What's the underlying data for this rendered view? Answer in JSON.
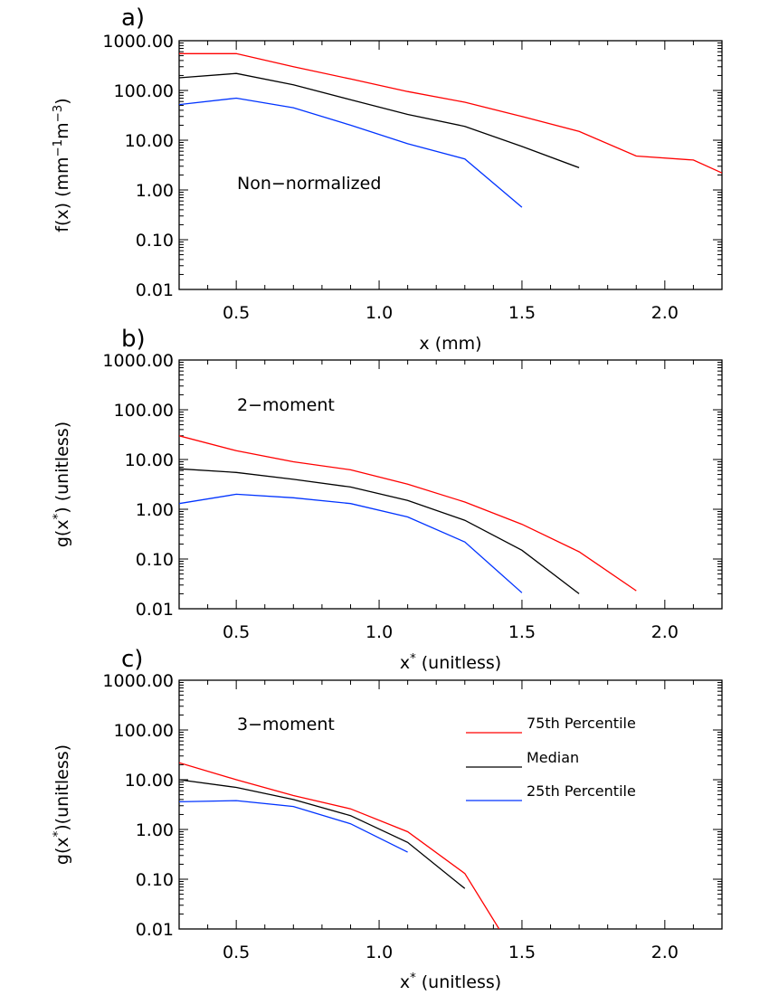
{
  "chart_data": [
    {
      "type": "line",
      "panel_label": "a)",
      "xlabel": "x (mm)",
      "ylabel": "f(x) (mm⁻¹m⁻³)",
      "annotation": "Non−normalized",
      "y_scale": "log",
      "xlim": [
        0.3,
        2.2
      ],
      "ylim": [
        0.01,
        1000
      ],
      "x_ticks": [
        0.5,
        1.0,
        1.5,
        2.0
      ],
      "x_tick_labels": [
        "0.5",
        "1.0",
        "1.5",
        "2.0"
      ],
      "y_ticks": [
        0.01,
        0.1,
        1,
        10,
        100,
        1000
      ],
      "y_tick_labels": [
        "0.01",
        "0.10",
        "1.00",
        "10.00",
        "100.00",
        "1000.00"
      ],
      "series": [
        {
          "name": "75th Percentile",
          "color": "#ff0000",
          "x": [
            0.3,
            0.5,
            0.7,
            0.9,
            1.1,
            1.3,
            1.5,
            1.7,
            1.9,
            2.1,
            2.2
          ],
          "y": [
            550,
            550,
            300,
            170,
            95,
            58,
            30,
            15,
            4.8,
            4.0,
            2.2
          ]
        },
        {
          "name": "Median",
          "color": "#000000",
          "x": [
            0.3,
            0.5,
            0.7,
            0.9,
            1.1,
            1.3,
            1.5,
            1.7
          ],
          "y": [
            180,
            220,
            130,
            65,
            33,
            19,
            7.5,
            2.8
          ]
        },
        {
          "name": "25th Percentile",
          "color": "#0033ff",
          "x": [
            0.3,
            0.5,
            0.7,
            0.9,
            1.1,
            1.3,
            1.5
          ],
          "y": [
            52,
            70,
            45,
            20,
            8.5,
            4.2,
            0.45
          ]
        }
      ]
    },
    {
      "type": "line",
      "panel_label": "b)",
      "xlabel": "x* (unitless)",
      "ylabel": "g(x*) (unitless)",
      "annotation": "2−moment",
      "y_scale": "log",
      "xlim": [
        0.3,
        2.2
      ],
      "ylim": [
        0.01,
        1000
      ],
      "x_ticks": [
        0.5,
        1.0,
        1.5,
        2.0
      ],
      "x_tick_labels": [
        "0.5",
        "1.0",
        "1.5",
        "2.0"
      ],
      "y_ticks": [
        0.01,
        0.1,
        1,
        10,
        100,
        1000
      ],
      "y_tick_labels": [
        "0.01",
        "0.10",
        "1.00",
        "10.00",
        "100.00",
        "1000.00"
      ],
      "series": [
        {
          "name": "75th Percentile",
          "color": "#ff0000",
          "x": [
            0.3,
            0.5,
            0.7,
            0.9,
            1.1,
            1.3,
            1.5,
            1.7,
            1.9
          ],
          "y": [
            30,
            15,
            9,
            6.2,
            3.2,
            1.4,
            0.5,
            0.14,
            0.023
          ]
        },
        {
          "name": "Median",
          "color": "#000000",
          "x": [
            0.3,
            0.5,
            0.7,
            0.9,
            1.1,
            1.3,
            1.5,
            1.7
          ],
          "y": [
            6.5,
            5.5,
            4.0,
            2.8,
            1.5,
            0.6,
            0.15,
            0.02
          ]
        },
        {
          "name": "25th Percentile",
          "color": "#0033ff",
          "x": [
            0.3,
            0.5,
            0.7,
            0.9,
            1.1,
            1.3,
            1.5
          ],
          "y": [
            1.3,
            2.0,
            1.7,
            1.3,
            0.7,
            0.22,
            0.021
          ]
        }
      ]
    },
    {
      "type": "line",
      "panel_label": "c)",
      "xlabel": "x* (unitless)",
      "ylabel": "g(x*)(unitless)",
      "annotation": "3−moment",
      "y_scale": "log",
      "xlim": [
        0.3,
        2.2
      ],
      "ylim": [
        0.01,
        1000
      ],
      "x_ticks": [
        0.5,
        1.0,
        1.5,
        2.0
      ],
      "x_tick_labels": [
        "0.5",
        "1.0",
        "1.5",
        "2.0"
      ],
      "y_ticks": [
        0.01,
        0.1,
        1,
        10,
        100,
        1000
      ],
      "y_tick_labels": [
        "0.01",
        "0.10",
        "1.00",
        "10.00",
        "100.00",
        "1000.00"
      ],
      "legend": {
        "position": "top-right",
        "entries": [
          {
            "label": "75th Percentile",
            "color": "#ff0000"
          },
          {
            "label": "Median",
            "color": "#000000"
          },
          {
            "label": "25th Percentile",
            "color": "#0033ff"
          }
        ]
      },
      "series": [
        {
          "name": "75th Percentile",
          "color": "#ff0000",
          "x": [
            0.3,
            0.5,
            0.7,
            0.9,
            1.1,
            1.3,
            1.42
          ],
          "y": [
            22,
            10,
            4.8,
            2.6,
            0.9,
            0.13,
            0.01
          ]
        },
        {
          "name": "Median",
          "color": "#000000",
          "x": [
            0.3,
            0.5,
            0.7,
            0.9,
            1.1,
            1.3
          ],
          "y": [
            10,
            7,
            4.0,
            1.9,
            0.55,
            0.065
          ]
        },
        {
          "name": "25th Percentile",
          "color": "#0033ff",
          "x": [
            0.3,
            0.5,
            0.7,
            0.9,
            1.1
          ],
          "y": [
            3.6,
            3.8,
            2.9,
            1.3,
            0.35
          ]
        }
      ]
    }
  ]
}
